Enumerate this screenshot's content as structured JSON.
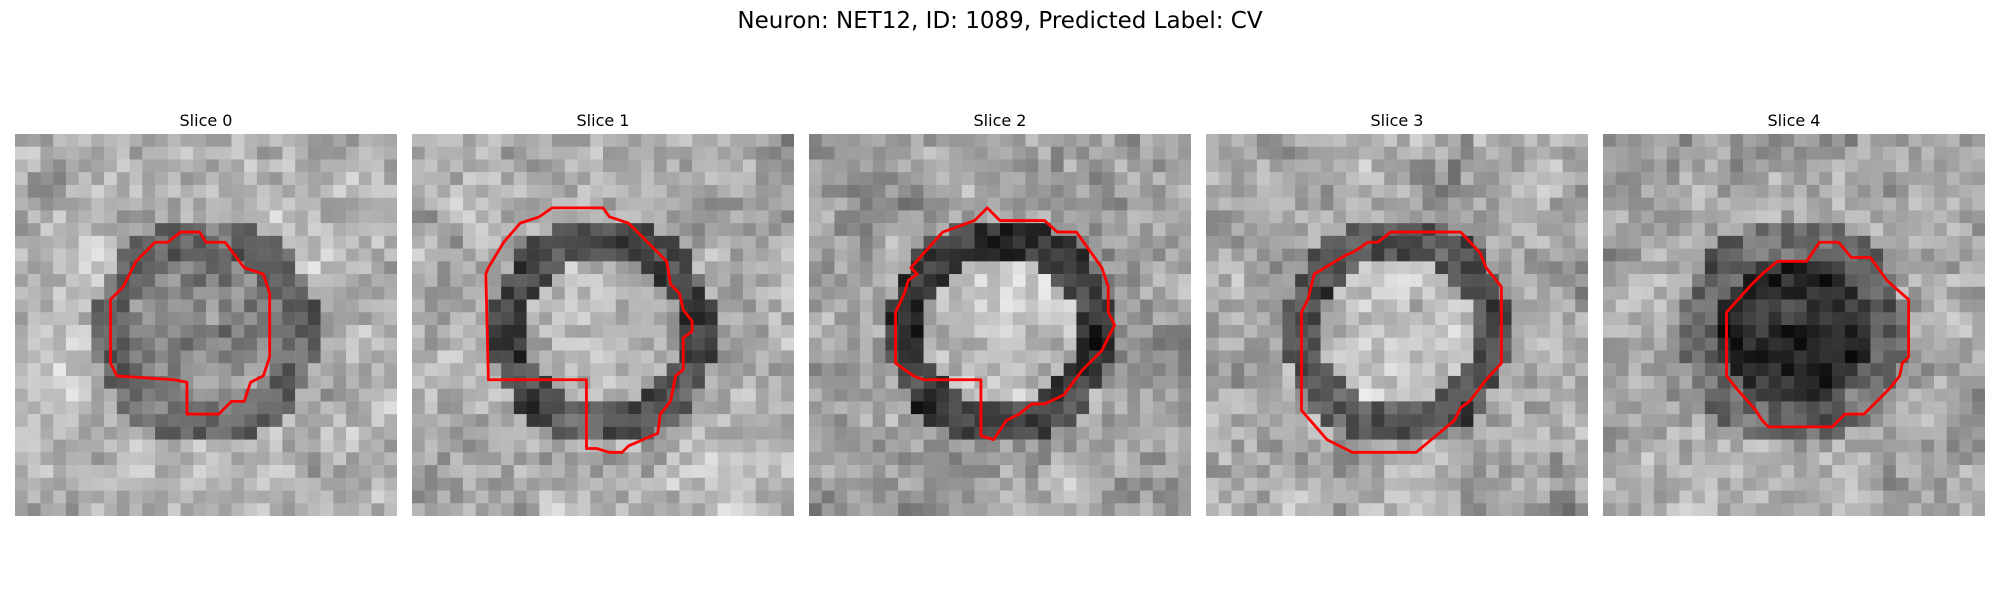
{
  "figure": {
    "title": "Neuron: NET12, ID: 1089, Predicted Label: CV"
  },
  "contour_color": "#ff0000",
  "slices": [
    {
      "title": "Slice 0",
      "seed": 11,
      "center_tone": 0.52,
      "ring_tone": 0.38,
      "outer_tone": 0.7
    },
    {
      "title": "Slice 1",
      "seed": 23,
      "center_tone": 0.7,
      "ring_tone": 0.3,
      "outer_tone": 0.68
    },
    {
      "title": "Slice 2",
      "seed": 37,
      "center_tone": 0.76,
      "ring_tone": 0.22,
      "outer_tone": 0.62
    },
    {
      "title": "Slice 3",
      "seed": 41,
      "center_tone": 0.74,
      "ring_tone": 0.32,
      "outer_tone": 0.66
    },
    {
      "title": "Slice 4",
      "seed": 53,
      "center_tone": 0.18,
      "ring_tone": 0.4,
      "outer_tone": 0.66
    }
  ]
}
